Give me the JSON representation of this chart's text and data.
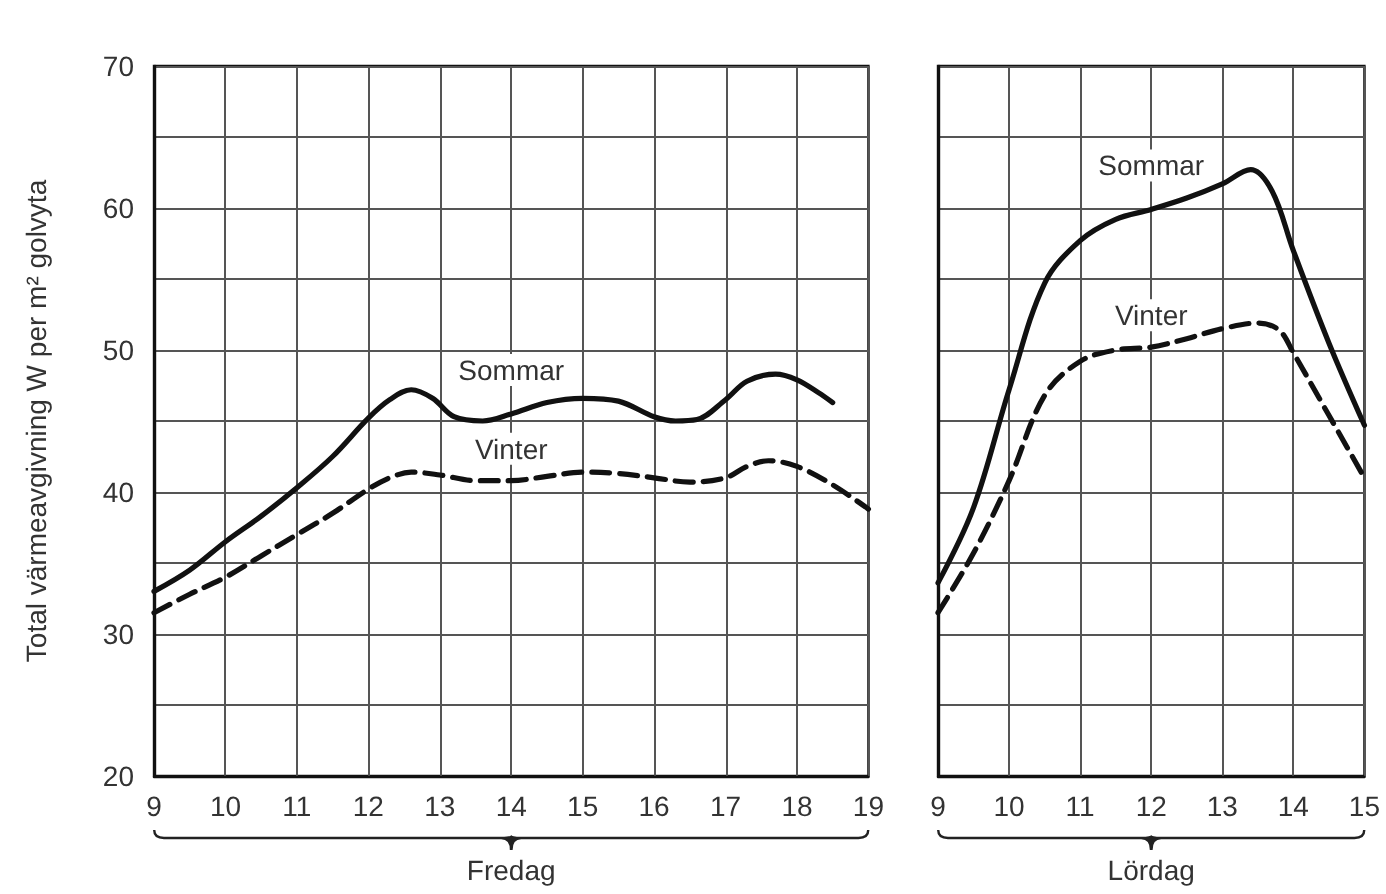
{
  "chart_data": [
    {
      "type": "line",
      "ylabel": "Total värmeavgivning W per m² golvyta",
      "xlabel": "Fredag",
      "xlim": [
        9,
        19
      ],
      "xticks": [
        9,
        10,
        11,
        12,
        13,
        14,
        15,
        16,
        17,
        18,
        19
      ],
      "ylim": [
        20,
        70
      ],
      "yticks": [
        20,
        {
          "value": 25,
          "label": null
        },
        30,
        {
          "value": 35,
          "label": null
        },
        40,
        {
          "value": 45,
          "label": null
        },
        50,
        {
          "value": 55,
          "label": null
        },
        60,
        {
          "value": 65,
          "label": null
        },
        70
      ],
      "grid": true,
      "marker": "none",
      "series": [
        {
          "name": "Sommar",
          "color": "#111111",
          "line_style": "solid",
          "x": [
            9,
            9.5,
            10,
            10.5,
            11,
            11.5,
            12,
            12.3,
            12.6,
            12.9,
            13.2,
            13.6,
            14,
            14.5,
            15,
            15.5,
            16,
            16.3,
            16.6,
            17,
            17.3,
            17.7,
            18,
            18.3,
            18.5
          ],
          "values": [
            33,
            34.5,
            36.5,
            38.3,
            40.3,
            42.5,
            45.2,
            46.5,
            47.2,
            46.6,
            45.3,
            45,
            45.5,
            46.3,
            46.6,
            46.4,
            45.3,
            45,
            45.1,
            46.5,
            47.8,
            48.3,
            47.9,
            47,
            46.3
          ]
        },
        {
          "name": "Vinter",
          "color": "#111111",
          "line_style": "dashed",
          "x": [
            9,
            9.5,
            10,
            10.5,
            11,
            11.5,
            12,
            12.3,
            12.6,
            13,
            13.5,
            14,
            14.5,
            15,
            15.5,
            16,
            16.5,
            17,
            17.3,
            17.6,
            18,
            18.5,
            19
          ],
          "values": [
            31.5,
            32.8,
            34,
            35.5,
            37,
            38.5,
            40.2,
            41,
            41.4,
            41.2,
            40.8,
            40.8,
            41.1,
            41.4,
            41.3,
            41,
            40.7,
            41,
            41.8,
            42.2,
            41.8,
            40.5,
            38.8
          ]
        }
      ]
    },
    {
      "type": "line",
      "xlabel": "Lördag",
      "xlim": [
        9,
        15
      ],
      "xticks": [
        9,
        10,
        11,
        12,
        13,
        14,
        15
      ],
      "ylim": [
        20,
        70
      ],
      "yticks": [
        20,
        {
          "value": 25,
          "label": null
        },
        30,
        {
          "value": 35,
          "label": null
        },
        40,
        {
          "value": 45,
          "label": null
        },
        50,
        {
          "value": 55,
          "label": null
        },
        60,
        {
          "value": 65,
          "label": null
        },
        70
      ],
      "tick_labels": "x",
      "grid": true,
      "marker": "none",
      "series": [
        {
          "name": "Sommar",
          "color": "#111111",
          "line_style": "solid",
          "x": [
            9,
            9.5,
            10,
            10.5,
            11,
            11.5,
            12,
            12.5,
            13,
            13.4,
            13.7,
            14,
            14.5,
            15
          ],
          "values": [
            33.6,
            38.9,
            47.2,
            54.7,
            57.7,
            59.2,
            59.9,
            60.7,
            61.7,
            62.7,
            61.2,
            57,
            50.5,
            44.7
          ]
        },
        {
          "name": "Vinter",
          "color": "#111111",
          "line_style": "dashed",
          "x": [
            9,
            9.5,
            10,
            10.5,
            11,
            11.5,
            12,
            12.5,
            13,
            13.5,
            13.8,
            14,
            14.5,
            15
          ],
          "values": [
            31.5,
            35.7,
            40.8,
            46.8,
            49.2,
            50,
            50.2,
            50.8,
            51.5,
            51.9,
            51.4,
            49.8,
            45.4,
            41
          ]
        }
      ]
    }
  ]
}
